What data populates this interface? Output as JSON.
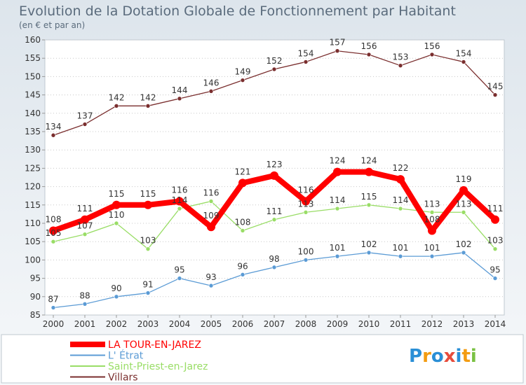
{
  "chart_data": {
    "type": "line",
    "title": "Evolution de la Dotation Globale de Fonctionnement par Habitant",
    "subtitle": "(en € et par an)",
    "x": [
      "2000",
      "2001",
      "2002",
      "2003",
      "2004",
      "2005",
      "2006",
      "2007",
      "2008",
      "2009",
      "2010",
      "2011",
      "2012",
      "2013",
      "2014"
    ],
    "y_ticks": [
      "85",
      "90",
      "95",
      "100",
      "105",
      "110",
      "115",
      "120",
      "125",
      "130",
      "135",
      "140",
      "145",
      "150",
      "155",
      "160"
    ],
    "ylim": [
      85,
      160
    ],
    "series": [
      {
        "name": "LA TOUR-EN-JAREZ",
        "color": "#ff0000",
        "values": [
          108,
          111,
          115,
          115,
          116,
          109,
          121,
          123,
          116,
          124,
          124,
          122,
          108,
          119,
          111
        ]
      },
      {
        "name": "L' Étrat",
        "color": "#5b9bd5",
        "values": [
          87,
          88,
          90,
          91,
          95,
          93,
          96,
          98,
          100,
          101,
          102,
          101,
          101,
          102,
          95
        ]
      },
      {
        "name": "Saint-Priest-en-Jarez",
        "color": "#99dd66",
        "values": [
          105,
          107,
          110,
          103,
          114,
          116,
          108,
          111,
          113,
          114,
          115,
          114,
          113,
          113,
          103
        ]
      },
      {
        "name": "Villars",
        "color": "#7a2e2e",
        "values": [
          134,
          137,
          142,
          142,
          144,
          146,
          149,
          152,
          154,
          157,
          156,
          153,
          156,
          154,
          145
        ]
      }
    ]
  },
  "legend": [
    {
      "label": "LA TOUR-EN-JAREZ",
      "color": "#ff0000"
    },
    {
      "label": "L' Étrat",
      "color": "#5b9bd5"
    },
    {
      "label": "Saint-Priest-en-Jarez",
      "color": "#99dd66"
    },
    {
      "label": "Villars",
      "color": "#7a2e2e"
    }
  ],
  "logo": {
    "letters": [
      "P",
      "r",
      "o",
      "x",
      "i",
      "t",
      "i"
    ],
    "colors": [
      "#2a8fd6",
      "#f39c12",
      "#2a8fd6",
      "#e74c3c",
      "#2a8fd6",
      "#f39c12",
      "#7ac143"
    ]
  }
}
